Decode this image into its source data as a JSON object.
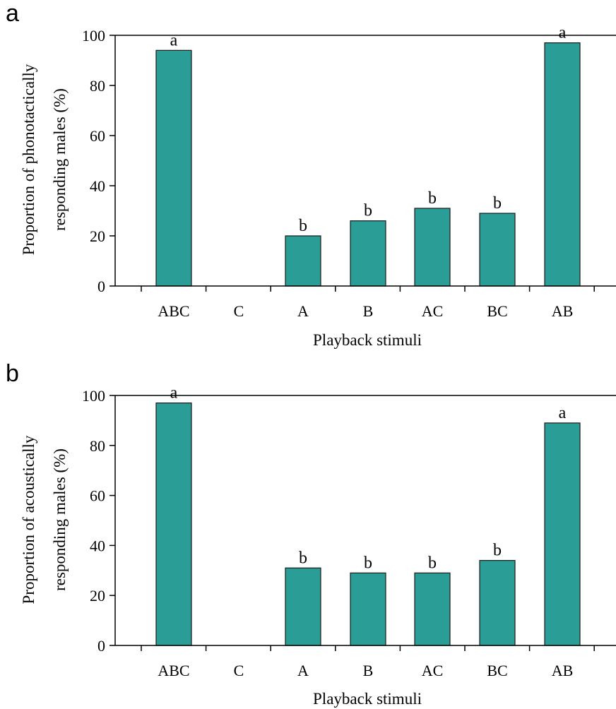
{
  "chart_data": [
    {
      "type": "bar",
      "panel": "a",
      "categories": [
        "ABC",
        "C",
        "A",
        "B",
        "AC",
        "BC",
        "AB"
      ],
      "values": [
        94,
        0,
        20,
        26,
        31,
        29,
        97
      ],
      "significance": [
        "a",
        "",
        "b",
        "b",
        "b",
        "b",
        "a"
      ],
      "xlabel": "Playback stimuli",
      "ylabel_lines": [
        "Proportion of phonotactically",
        "responding males (%)"
      ],
      "ylim": [
        0,
        100
      ],
      "yticks": [
        0,
        20,
        40,
        60,
        80,
        100
      ],
      "bar_color": "#2a9d96",
      "grid": false
    },
    {
      "type": "bar",
      "panel": "b",
      "categories": [
        "ABC",
        "C",
        "A",
        "B",
        "AC",
        "BC",
        "AB"
      ],
      "values": [
        97,
        0,
        31,
        29,
        29,
        34,
        89
      ],
      "significance": [
        "a",
        "",
        "b",
        "b",
        "b",
        "b",
        "a"
      ],
      "xlabel": "Playback stimuli",
      "ylabel_lines": [
        "Proportion of acoustically",
        "responding males (%)"
      ],
      "ylim": [
        0,
        100
      ],
      "yticks": [
        0,
        20,
        40,
        60,
        80,
        100
      ],
      "bar_color": "#2a9d96",
      "grid": false
    }
  ]
}
